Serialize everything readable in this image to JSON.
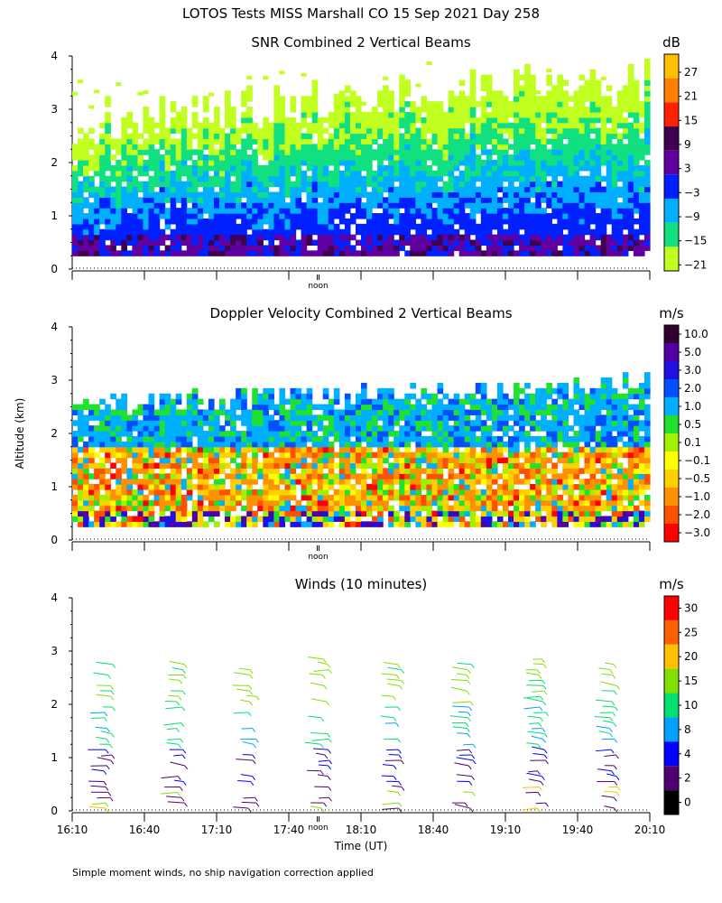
{
  "title": "LOTOS Tests MISS Marshall CO  15 Sep 2021 Day 258",
  "footer": "Simple moment winds, no ship navigation correction applied",
  "y_axis_label": "Altitude (km)",
  "x_axis_label": "Time (UT)",
  "noon_label": "noon",
  "chart_data": [
    {
      "type": "heatmap",
      "title": "SNR Combined 2 Vertical Beams",
      "units": "dB",
      "ylim": [
        0,
        4
      ],
      "yticks": [
        "0",
        "1",
        "2",
        "3",
        "4"
      ],
      "xlim": [
        16.1667,
        20.1667
      ],
      "colorbar_labels": [
        "27",
        "21",
        "15",
        "9",
        "3",
        "−3",
        "−9",
        "−15",
        "−21"
      ],
      "colors": [
        "#ffc000",
        "#ff8000",
        "#ff2000",
        "#400050",
        "#6000a0",
        "#0020ff",
        "#00b0ff",
        "#10e080",
        "#c0ff20"
      ],
      "legend": "right"
    },
    {
      "type": "heatmap",
      "title": "Doppler Velocity Combined 2 Vertical Beams",
      "units": "m/s",
      "ylim": [
        0,
        4
      ],
      "yticks": [
        "0",
        "1",
        "2",
        "3",
        "4"
      ],
      "xlim": [
        16.1667,
        20.1667
      ],
      "colorbar_labels": [
        "10.0",
        "5.0",
        "3.0",
        "2.0",
        "1.0",
        "0.5",
        "0.1",
        "−0.1",
        "−0.5",
        "−1.0",
        "−2.0",
        "−3.0"
      ],
      "colors": [
        "#300030",
        "#5000a0",
        "#2010e0",
        "#0050ff",
        "#00b0ff",
        "#20e030",
        "#a0f000",
        "#ffff00",
        "#ffd000",
        "#ff9000",
        "#ff5000",
        "#ff0000"
      ],
      "legend": "right"
    },
    {
      "type": "scatter",
      "title": "Winds (10 minutes)",
      "units": "m/s",
      "ylim": [
        0,
        4
      ],
      "yticks": [
        "0",
        "1",
        "2",
        "3",
        "4"
      ],
      "xlim": [
        16.1667,
        20.1667
      ],
      "xticks": [
        "16:10",
        "16:40",
        "17:10",
        "17:40",
        "18:10",
        "18:40",
        "19:10",
        "19:40",
        "20:10"
      ],
      "colorbar_labels": [
        "30",
        "25",
        "20",
        "15",
        "10",
        "8",
        "4",
        "2",
        "0"
      ],
      "colors": [
        "#ff0000",
        "#ff6000",
        "#ffc000",
        "#80e000",
        "#00e070",
        "#00a0ff",
        "#0000ff",
        "#500070",
        "#000000"
      ],
      "profile_times": [
        "16:25",
        "16:55",
        "17:25",
        "17:55",
        "18:25",
        "18:55",
        "19:25",
        "19:55"
      ],
      "legend": "right"
    }
  ]
}
